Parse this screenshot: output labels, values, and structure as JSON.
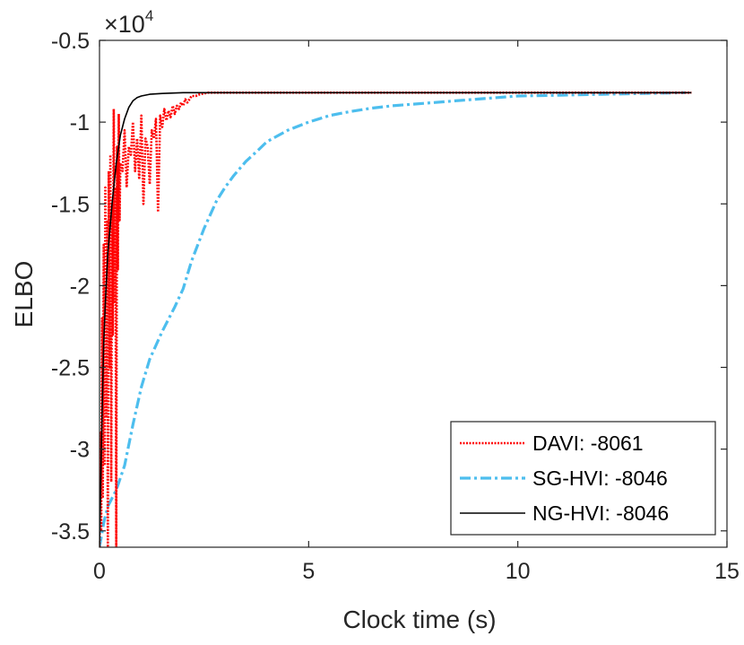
{
  "chart_data": {
    "type": "line",
    "title": "",
    "xlabel": "Clock time (s)",
    "ylabel": "ELBO",
    "xlim": [
      0,
      15
    ],
    "ylim": [
      -3.6,
      -0.5
    ],
    "y_multiplier": {
      "base": "×10",
      "exponent": "4"
    },
    "xticks": [
      0,
      5,
      10,
      15
    ],
    "xtick_labels": [
      "0",
      "5",
      "10",
      "15"
    ],
    "yticks": [
      -0.5,
      -1,
      -1.5,
      -2,
      -2.5,
      -3,
      -3.5
    ],
    "ytick_labels": [
      "-0.5",
      "-1",
      "-1.5",
      "-2",
      "-2.5",
      "-3",
      "-3.5"
    ],
    "grid": false,
    "legend_position": "bottom-right",
    "series": [
      {
        "name": "DAVI: -8061",
        "color": "#ff0000",
        "style": "dotted",
        "x": [
          0.0,
          0.02,
          0.04,
          0.06,
          0.08,
          0.1,
          0.12,
          0.14,
          0.16,
          0.18,
          0.2,
          0.22,
          0.24,
          0.26,
          0.28,
          0.3,
          0.32,
          0.34,
          0.36,
          0.38,
          0.4,
          0.42,
          0.44,
          0.46,
          0.48,
          0.5,
          0.55,
          0.6,
          0.65,
          0.7,
          0.75,
          0.8,
          0.85,
          0.9,
          0.95,
          1.0,
          1.05,
          1.1,
          1.15,
          1.2,
          1.25,
          1.3,
          1.35,
          1.4,
          1.45,
          1.5,
          1.55,
          1.6,
          1.65,
          1.7,
          1.75,
          1.8,
          1.85,
          1.9,
          1.95,
          2.0,
          2.05,
          2.1,
          2.2,
          2.3,
          2.4,
          2.6,
          3.0,
          4.0,
          6.0,
          8.0,
          10.0,
          12.0,
          14.15
        ],
        "y": [
          -3.6,
          -2.9,
          -3.5,
          -2.2,
          -3.3,
          -1.75,
          -3.1,
          -1.4,
          -2.8,
          -1.6,
          -3.6,
          -1.3,
          -2.5,
          -1.2,
          -3.2,
          -1.5,
          -2.3,
          -0.92,
          -2.1,
          -1.4,
          -3.6,
          -1.15,
          -1.9,
          -0.95,
          -1.6,
          -1.25,
          -1.3,
          -1.05,
          -1.4,
          -1.15,
          -1.2,
          -1.0,
          -1.3,
          -1.1,
          -1.35,
          -0.96,
          -1.5,
          -1.1,
          -1.15,
          -1.38,
          -1.05,
          -1.1,
          -0.98,
          -1.55,
          -0.96,
          -1.03,
          -0.92,
          -0.99,
          -0.93,
          -0.97,
          -0.9,
          -0.95,
          -0.9,
          -0.92,
          -0.88,
          -0.9,
          -0.86,
          -0.88,
          -0.84,
          -0.84,
          -0.83,
          -0.82,
          -0.82,
          -0.82,
          -0.82,
          -0.82,
          -0.82,
          -0.82,
          -0.82
        ]
      },
      {
        "name": "SG-HVI: -8046",
        "color": "#4dbeee",
        "style": "dashdot",
        "x": [
          0.0,
          0.1,
          0.2,
          0.4,
          0.6,
          0.8,
          1.0,
          1.2,
          1.5,
          1.8,
          2.0,
          2.2,
          2.5,
          2.8,
          3.0,
          3.2,
          3.5,
          3.8,
          4.0,
          4.5,
          5.0,
          5.5,
          6.0,
          6.5,
          7.0,
          7.5,
          8.0,
          8.5,
          9.0,
          9.5,
          10.0,
          11.0,
          12.0,
          13.0,
          14.0
        ],
        "y": [
          -3.6,
          -3.45,
          -3.35,
          -3.25,
          -3.1,
          -2.85,
          -2.62,
          -2.45,
          -2.28,
          -2.13,
          -2.02,
          -1.85,
          -1.65,
          -1.48,
          -1.4,
          -1.33,
          -1.24,
          -1.17,
          -1.12,
          -1.05,
          -1.0,
          -0.96,
          -0.935,
          -0.915,
          -0.9,
          -0.89,
          -0.88,
          -0.87,
          -0.86,
          -0.85,
          -0.84,
          -0.835,
          -0.83,
          -0.825,
          -0.82
        ]
      },
      {
        "name": "NG-HVI: -8046",
        "color": "#000000",
        "style": "solid",
        "x": [
          0.0,
          0.03,
          0.06,
          0.1,
          0.15,
          0.2,
          0.25,
          0.3,
          0.4,
          0.5,
          0.6,
          0.7,
          0.8,
          0.9,
          1.0,
          1.2,
          1.5,
          2.0,
          4.0,
          8.0,
          12.0,
          14.15
        ],
        "y": [
          -3.6,
          -3.2,
          -2.8,
          -2.35,
          -2.05,
          -1.8,
          -1.65,
          -1.5,
          -1.25,
          -1.08,
          -0.98,
          -0.91,
          -0.87,
          -0.85,
          -0.84,
          -0.83,
          -0.825,
          -0.82,
          -0.82,
          -0.82,
          -0.82,
          -0.82
        ]
      }
    ]
  }
}
